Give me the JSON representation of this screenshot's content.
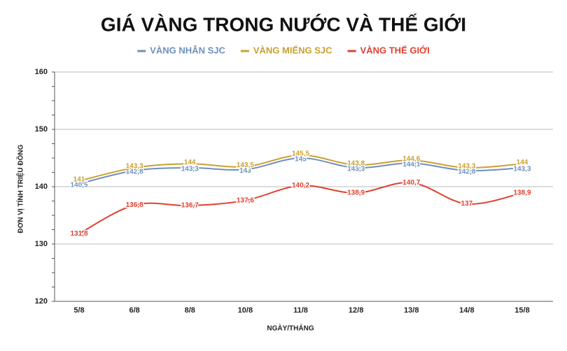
{
  "chart_data": {
    "type": "line",
    "title": "GIÁ VÀNG TRONG NƯỚC VÀ THẾ GIỚI",
    "x_label": "NGÀY/THÁNG",
    "y_label": "ĐƠN VỊ TÍNH TRIỆU ĐỒNG",
    "categories": [
      "5/8",
      "6/8",
      "8/8",
      "10/8",
      "11/8",
      "12/8",
      "13/8",
      "14/8",
      "15/8"
    ],
    "series": [
      {
        "name": "VÀNG NHẪN SJC",
        "color": "#6f8fbf",
        "values": [
          140.5,
          142.8,
          143.3,
          143,
          145,
          143.3,
          144.1,
          142.8,
          143.3
        ],
        "value_labels": [
          "140,5",
          "142,8",
          "143,3",
          "143",
          "145",
          "143,3",
          "144,1",
          "142,8",
          "143,3"
        ]
      },
      {
        "name": "VÀNG MIẾNG SJC",
        "color": "#c9a030",
        "values": [
          141,
          143.3,
          144,
          143.5,
          145.5,
          143.8,
          144.6,
          143.3,
          144
        ],
        "value_labels": [
          "141",
          "143,3",
          "144",
          "143,5",
          "145,5",
          "143,8",
          "144,6",
          "143,3",
          "144"
        ]
      },
      {
        "name": "VÀNG THẾ GIỚI",
        "color": "#e0402e",
        "values": [
          131.8,
          136.8,
          136.7,
          137.6,
          140.2,
          138.9,
          140.7,
          137,
          138.9
        ],
        "value_labels": [
          "131,8",
          "136,8",
          "136,7",
          "137,6",
          "140,2",
          "138,9",
          "140,7",
          "137",
          "138,9"
        ]
      }
    ],
    "ylim": [
      120,
      160
    ],
    "yticks": [
      120,
      130,
      140,
      150,
      160
    ],
    "grid": true,
    "legend": "top"
  }
}
